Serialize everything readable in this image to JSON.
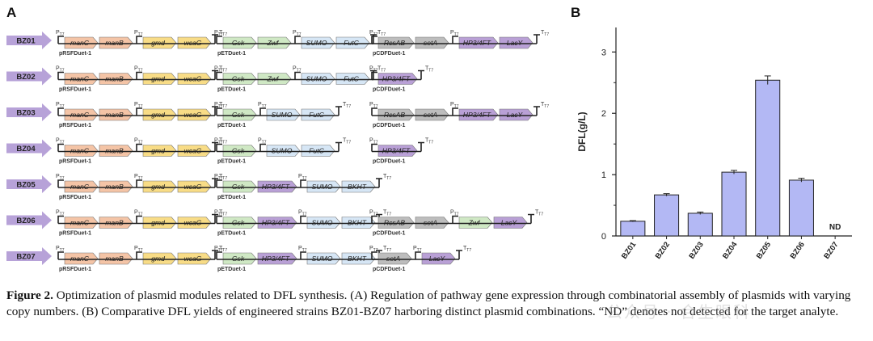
{
  "figure": {
    "panel_a_label": "A",
    "panel_b_label": "B",
    "caption_prefix": "Figure 2.",
    "caption_text": " Optimization of plasmid modules related to DFL synthesis. (A) Regulation of pathway gene expression through combinatorial assembly of plasmids with varying copy numbers. (B) Comparative DFL yields of engineered strains BZ01-BZ07 harboring distinct plasmid combinations. “ND” denotes not detected for the target analyte.",
    "watermark": "公众号 · 合生眼科"
  },
  "panel_a": {
    "promoter_label": "P",
    "promoter_sub": "T7",
    "terminator_label": "T",
    "terminator_sub": "T7",
    "colors": {
      "strain_arrow": "#b7a2d8",
      "manC": "#f4c4a6",
      "manB": "#f4c4a6",
      "gmd": "#f8dc86",
      "wcaG": "#f8dc86",
      "Gsk": "#cfe8c4",
      "Zwf": "#cfe8c4",
      "SUMO": "#d6e6f5",
      "FutC": "#d6e6f5",
      "BKHT": "#d6e6f5",
      "HP3/4FT": "#b9a0d6",
      "LacY": "#b9a0d6",
      "RcsAB": "#bdbdbd",
      "setA": "#bdbdbd"
    },
    "strains": [
      {
        "name": "BZ01",
        "plasmids": [
          {
            "backbone": "pRSFDuet-1",
            "units": [
              [
                "manC",
                "manB"
              ],
              [
                "gmd",
                "wcaG"
              ]
            ]
          },
          {
            "backbone": "pETDuet-1",
            "units": [
              [
                "Gsk",
                "Zwf"
              ],
              [
                "SUMO",
                "FutC"
              ]
            ]
          },
          {
            "backbone": "pCDFDuet-1",
            "units": [
              [
                "RcsAB",
                "setA"
              ],
              [
                "HP3/4FT",
                "LacY"
              ]
            ]
          }
        ]
      },
      {
        "name": "BZ02",
        "plasmids": [
          {
            "backbone": "pRSFDuet-1",
            "units": [
              [
                "manC",
                "manB"
              ],
              [
                "gmd",
                "wcaG"
              ]
            ]
          },
          {
            "backbone": "pETDuet-1",
            "units": [
              [
                "Gsk",
                "Zwf"
              ],
              [
                "SUMO",
                "FutC"
              ]
            ]
          },
          {
            "backbone": "pCDFDuet-1",
            "units": [
              [
                "HP3/4FT"
              ]
            ]
          }
        ]
      },
      {
        "name": "BZ03",
        "plasmids": [
          {
            "backbone": "pRSFDuet-1",
            "units": [
              [
                "manC",
                "manB"
              ],
              [
                "gmd",
                "wcaG"
              ]
            ]
          },
          {
            "backbone": "pETDuet-1",
            "units": [
              [
                "Gsk"
              ],
              [
                "SUMO",
                "FutC"
              ]
            ]
          },
          {
            "backbone": "pCDFDuet-1",
            "units": [
              [
                "RcsAB",
                "setA"
              ],
              [
                "HP3/4FT",
                "LacY"
              ]
            ]
          }
        ]
      },
      {
        "name": "BZ04",
        "plasmids": [
          {
            "backbone": "pRSFDuet-1",
            "units": [
              [
                "manC",
                "manB"
              ],
              [
                "gmd",
                "wcaG"
              ]
            ]
          },
          {
            "backbone": "pETDuet-1",
            "units": [
              [
                "Gsk"
              ],
              [
                "SUMO",
                "FutC"
              ]
            ]
          },
          {
            "backbone": "pCDFDuet-1",
            "units": [
              [
                "HP3/4FT"
              ]
            ]
          }
        ]
      },
      {
        "name": "BZ05",
        "plasmids": [
          {
            "backbone": "pRSFDuet-1",
            "units": [
              [
                "manC",
                "manB"
              ],
              [
                "gmd",
                "wcaG"
              ]
            ]
          },
          {
            "backbone": "pETDuet-1",
            "units": [
              [
                "Gsk",
                "HP3/4FT"
              ],
              [
                "SUMO",
                "BKHT"
              ]
            ]
          }
        ]
      },
      {
        "name": "BZ06",
        "plasmids": [
          {
            "backbone": "pRSFDuet-1",
            "units": [
              [
                "manC",
                "manB"
              ],
              [
                "gmd",
                "wcaG"
              ]
            ]
          },
          {
            "backbone": "pETDuet-1",
            "units": [
              [
                "Gsk",
                "HP3/4FT"
              ],
              [
                "SUMO",
                "BKHT"
              ]
            ]
          },
          {
            "backbone": "pCDFDuet-1",
            "units": [
              [
                "RcsAB",
                "setA"
              ],
              [
                "Zwf",
                "LacY"
              ]
            ]
          }
        ]
      },
      {
        "name": "BZ07",
        "plasmids": [
          {
            "backbone": "pRSFDuet-1",
            "units": [
              [
                "manC",
                "manB"
              ],
              [
                "gmd",
                "wcaG"
              ]
            ]
          },
          {
            "backbone": "pETDuet-1",
            "units": [
              [
                "Gsk",
                "HP3/4FT"
              ],
              [
                "SUMO",
                "BKHT"
              ]
            ]
          },
          {
            "backbone": "pCDFDuet-1",
            "units": [
              [
                "setA"
              ],
              [
                "LacY"
              ]
            ]
          }
        ]
      }
    ]
  },
  "chart_data": {
    "type": "bar",
    "categories": [
      "BZ01",
      "BZ02",
      "BZ03",
      "BZ04",
      "BZ05",
      "BZ06",
      "BZ07"
    ],
    "values": [
      0.24,
      0.67,
      0.37,
      1.04,
      2.54,
      0.91,
      null
    ],
    "errors": [
      0.01,
      0.02,
      0.02,
      0.03,
      0.07,
      0.03,
      null
    ],
    "annotations": [
      "",
      "",
      "",
      "",
      "",
      "",
      "ND"
    ],
    "ylabel": "DFL(g/L)",
    "xlabel": "",
    "ylim": [
      0,
      3.4
    ],
    "yticks": [
      0,
      1,
      2,
      3
    ],
    "bar_color": "#b3b8f4",
    "bar_edge": "#222222",
    "grid": false
  }
}
